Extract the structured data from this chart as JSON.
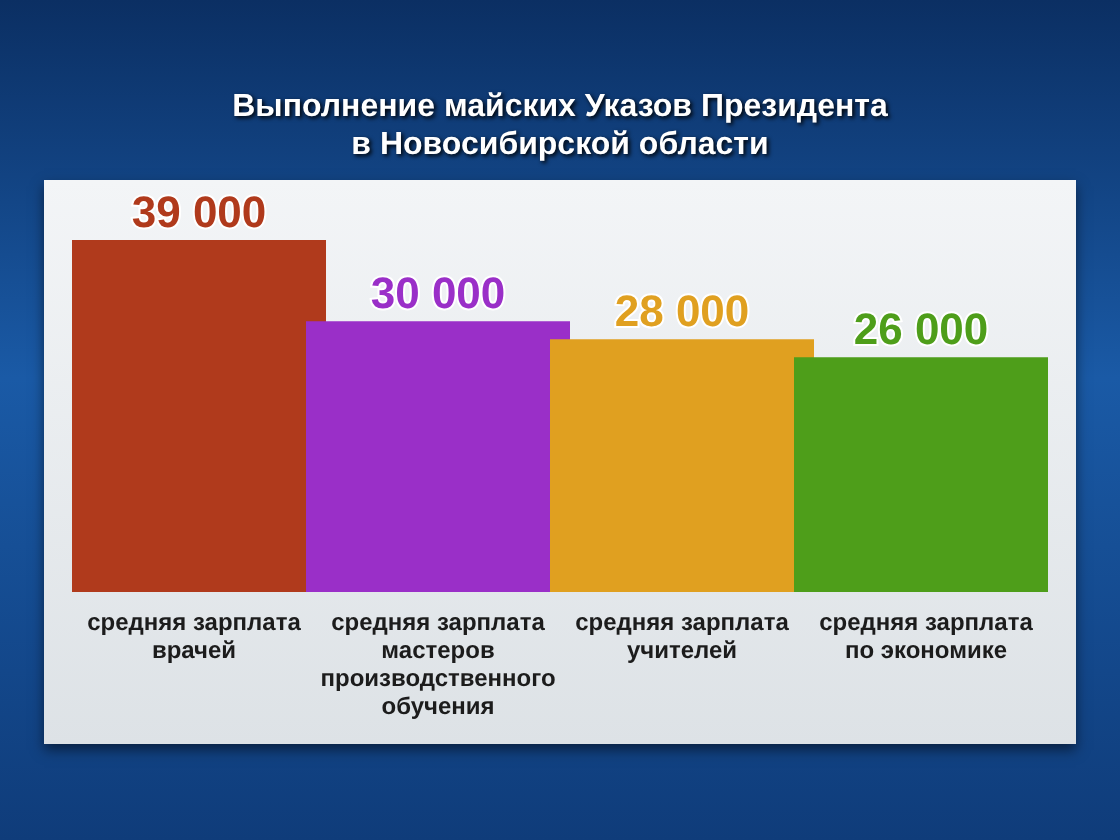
{
  "chart_data": {
    "type": "bar",
    "title": "Выполнение майских Указов Президента в Новосибирской области",
    "categories": [
      "средняя зарплата врачей",
      "средняя зарплата мастеров производственного обучения",
      "средняя зарплата учителей",
      "средняя зарплата по экономике"
    ],
    "values": [
      39000,
      30000,
      28000,
      26000
    ],
    "colors": [
      "#b03a1c",
      "#9a2fc8",
      "#e0a020",
      "#4e9e1a"
    ],
    "value_labels": [
      "39 000",
      "30 000",
      "28 000",
      "26 000"
    ]
  }
}
